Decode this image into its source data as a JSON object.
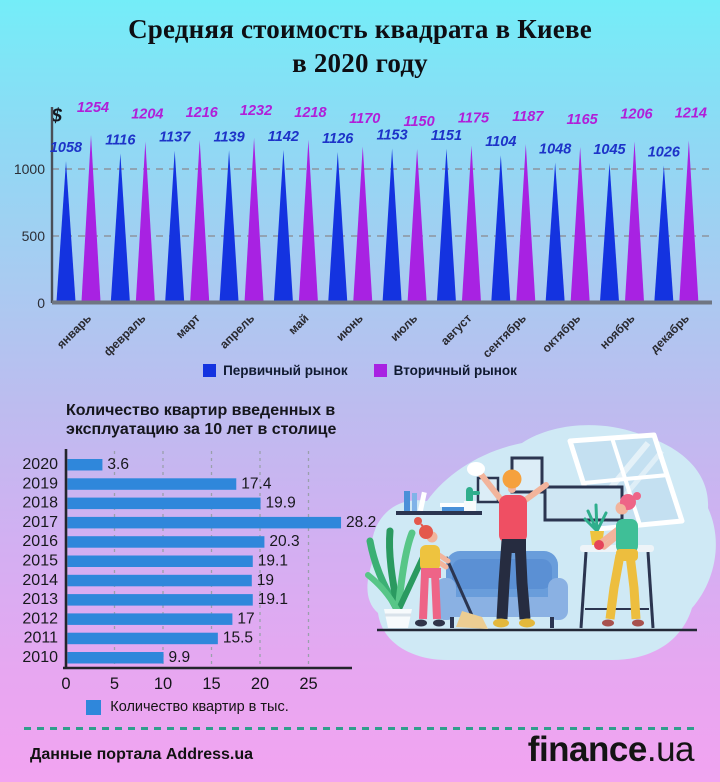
{
  "title": {
    "line1": "Средняя стоимость квадрата в Киеве",
    "line2": "в 2020 году"
  },
  "chart_data": [
    {
      "type": "bar",
      "variant": "spike-triangles",
      "currency_symbol": "$",
      "categories": [
        "январь",
        "февраль",
        "март",
        "апрель",
        "май",
        "июнь",
        "июль",
        "август",
        "сентябрь",
        "октябрь",
        "ноябрь",
        "декабрь"
      ],
      "series": [
        {
          "name": "Первичный рынок",
          "color": "#1433e0",
          "label_color": "#1d33c8",
          "values": [
            1058,
            1116,
            1137,
            1139,
            1142,
            1126,
            1153,
            1151,
            1104,
            1048,
            1045,
            1026
          ]
        },
        {
          "name": "Вторичный рынок",
          "color": "#a822e2",
          "label_color": "#b01fd8",
          "values": [
            1254,
            1204,
            1216,
            1232,
            1218,
            1170,
            1150,
            1175,
            1187,
            1165,
            1206,
            1214
          ]
        }
      ],
      "yticks": [
        0,
        500,
        1000
      ],
      "ylim": [
        0,
        1460
      ],
      "grid": "dashed-horizontal",
      "legend_position": "bottom"
    },
    {
      "type": "bar",
      "orientation": "horizontal",
      "title_line1": "Количество квартир введенных в",
      "title_line2": "эксплуатацию за 10 лет в столице",
      "categories": [
        "2020",
        "2019",
        "2018",
        "2017",
        "2016",
        "2015",
        "2014",
        "2013",
        "2012",
        "2011",
        "2010"
      ],
      "values": [
        3.6,
        17.4,
        19.9,
        28.2,
        20.3,
        19.1,
        19,
        19.1,
        17,
        15.5,
        9.9
      ],
      "xticks": [
        0,
        5,
        10,
        15,
        20,
        25
      ],
      "xlim": [
        0,
        29
      ],
      "bar_color": "#2f87db",
      "grid": "dashed-vertical",
      "legend": "Количество квартир в тыс."
    }
  ],
  "footer": {
    "source": "Данные портала Address.ua",
    "logo_main": "finance",
    "logo_suffix": ".ua"
  },
  "colors": {
    "primary_market": "#1433e0",
    "secondary_market": "#a822e2",
    "apartments_bar": "#2f87db",
    "separator": "#2f9e8c",
    "background_top": "#74edf8",
    "background_bottom": "#f2a4f1"
  }
}
